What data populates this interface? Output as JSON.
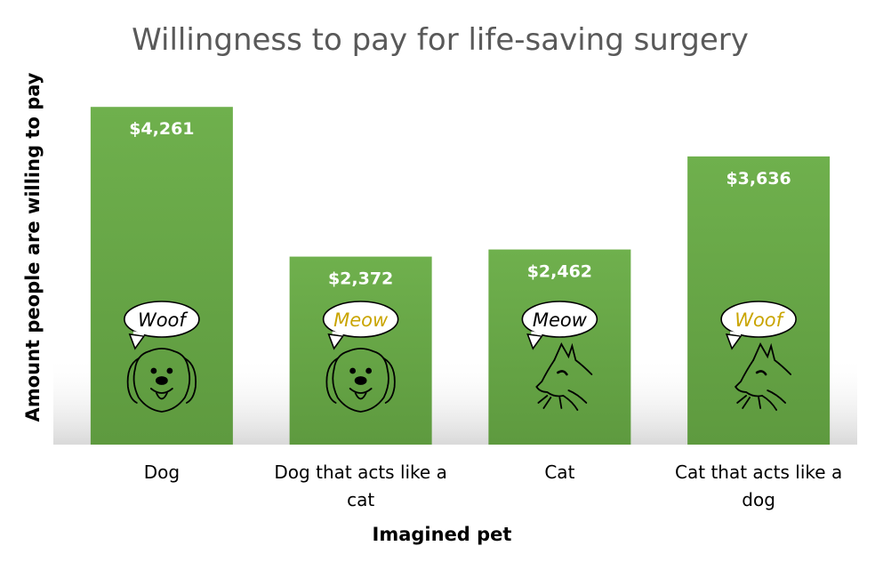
{
  "chart_data": {
    "type": "bar",
    "title": "Willingness to pay for life-saving surgery",
    "xlabel": "Imagined pet",
    "ylabel": "Amount people are willing to pay",
    "categories": [
      [
        "Dog"
      ],
      [
        "Dog that acts like a",
        "cat"
      ],
      [
        "Cat"
      ],
      [
        "Cat that acts like a",
        "dog"
      ]
    ],
    "values": [
      4261,
      2372,
      2462,
      3636
    ],
    "data_labels": [
      "$4,261",
      "$2,372",
      "$2,462",
      "$3,636"
    ],
    "ylim": [
      0,
      4600
    ],
    "grid": false,
    "legend": "none",
    "bar_color": "#6aa84f",
    "annotations": [
      {
        "bubble": "Woof",
        "bubble_color": "#000000",
        "icon": "dog-face-icon"
      },
      {
        "bubble": "Meow",
        "bubble_color": "#c9a400",
        "icon": "dog-face-icon"
      },
      {
        "bubble": "Meow",
        "bubble_color": "#000000",
        "icon": "cat-face-icon"
      },
      {
        "bubble": "Woof",
        "bubble_color": "#c9a400",
        "icon": "cat-face-icon"
      }
    ]
  }
}
